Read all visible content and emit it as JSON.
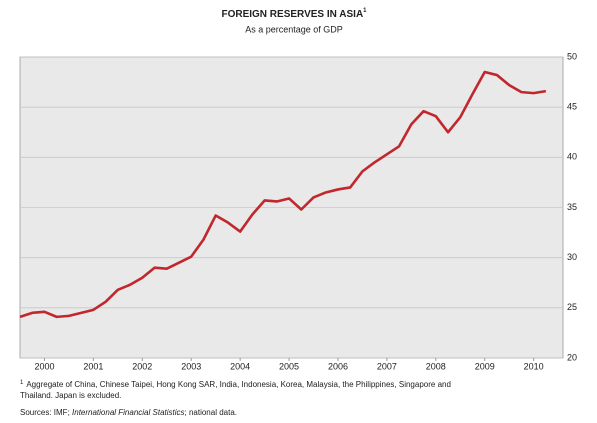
{
  "chart_data": {
    "type": "line",
    "title": "FOREIGN RESERVES IN ASIA",
    "title_note": "1",
    "subtitle": "As a percentage of GDP",
    "x": [
      2000.0,
      2000.25,
      2000.5,
      2000.75,
      2001.0,
      2001.25,
      2001.5,
      2001.75,
      2002.0,
      2002.25,
      2002.5,
      2002.75,
      2003.0,
      2003.25,
      2003.5,
      2003.75,
      2004.0,
      2004.25,
      2004.5,
      2004.75,
      2005.0,
      2005.25,
      2005.5,
      2005.75,
      2006.0,
      2006.25,
      2006.5,
      2006.75,
      2007.0,
      2007.25,
      2007.5,
      2007.75,
      2008.0,
      2008.25,
      2008.5,
      2008.75,
      2009.0,
      2009.25,
      2009.5,
      2009.75,
      2010.0,
      2010.25,
      2010.5,
      2010.75
    ],
    "series": [
      {
        "name": "Foreign reserves",
        "color": "#c1272d",
        "values": [
          24.1,
          24.5,
          24.6,
          24.1,
          24.2,
          24.5,
          24.8,
          25.6,
          26.8,
          27.3,
          28.0,
          29.0,
          28.9,
          29.5,
          30.1,
          31.8,
          34.2,
          33.5,
          32.6,
          34.3,
          35.7,
          35.6,
          35.9,
          34.8,
          36.0,
          36.5,
          36.8,
          37.0,
          38.6,
          39.5,
          40.3,
          41.1,
          43.3,
          44.6,
          44.1,
          42.5,
          44.0,
          46.3,
          48.5,
          48.2,
          47.2,
          46.5,
          46.4,
          46.6
        ]
      }
    ],
    "xlim": [
      2000.0,
      2011.1
    ],
    "xticks": [
      {
        "value": 2000.5,
        "label": "2000"
      },
      {
        "value": 2001.5,
        "label": "2001"
      },
      {
        "value": 2002.5,
        "label": "2002"
      },
      {
        "value": 2003.5,
        "label": "2003"
      },
      {
        "value": 2004.5,
        "label": "2004"
      },
      {
        "value": 2005.5,
        "label": "2005"
      },
      {
        "value": 2006.5,
        "label": "2006"
      },
      {
        "value": 2007.5,
        "label": "2007"
      },
      {
        "value": 2008.5,
        "label": "2008"
      },
      {
        "value": 2009.5,
        "label": "2009"
      },
      {
        "value": 2010.5,
        "label": "2010"
      }
    ],
    "ylim": [
      20,
      50
    ],
    "yticks": [
      20,
      25,
      30,
      35,
      40,
      45,
      50
    ],
    "grid": true,
    "footnote": {
      "marker": "1",
      "lines": [
        "Aggregate of China, Chinese Taipei, Hong Kong SAR, India, Indonesia, Korea, Malaysia, the Philippines, Singapore and",
        "Thailand. Japan is excluded."
      ]
    },
    "sources": {
      "prefix": "Sources: IMF; ",
      "italic": "International Financial Statistics",
      "suffix": "; national data."
    }
  }
}
